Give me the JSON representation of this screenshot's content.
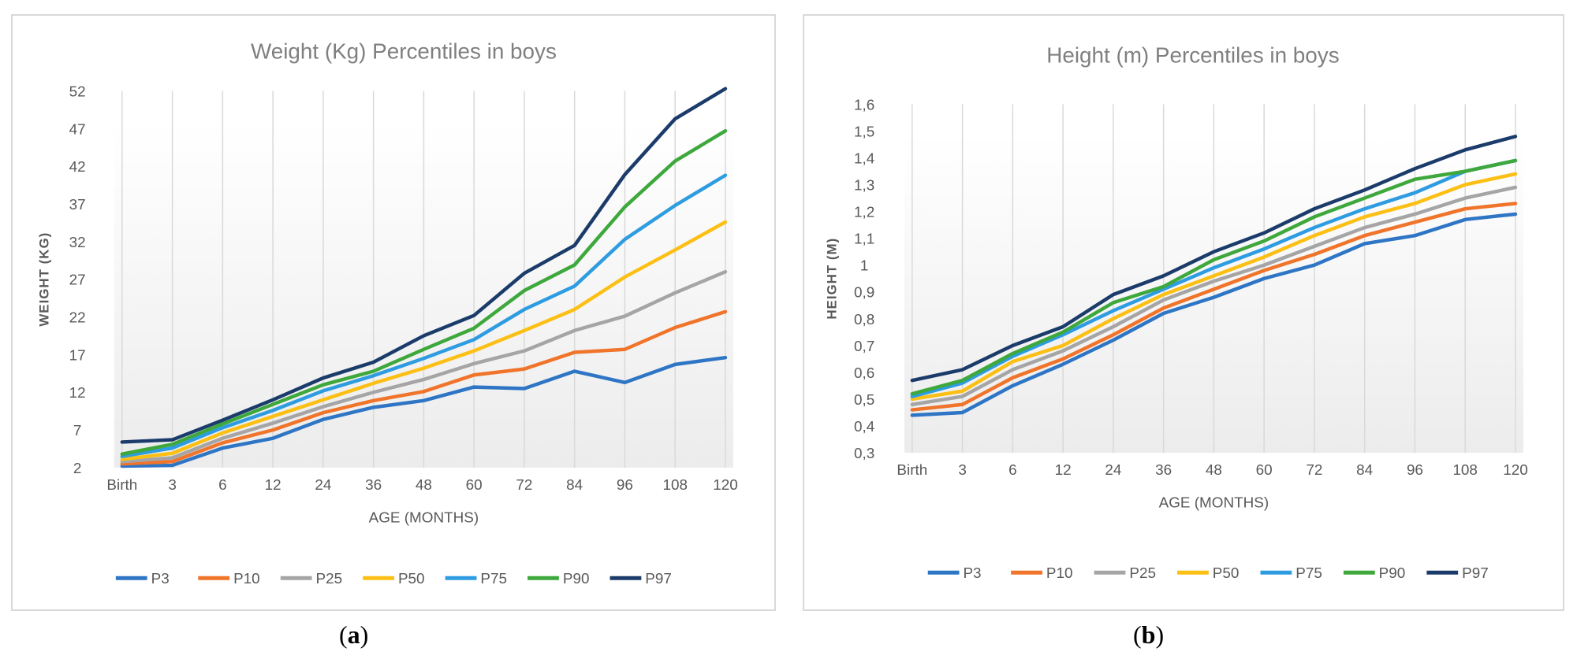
{
  "colors": {
    "P3": "#2e75c5",
    "P10": "#f0742a",
    "P25": "#a5a5a5",
    "P50": "#fcbf14",
    "P75": "#2e9ce0",
    "P90": "#3ea83c",
    "P97": "#1b3c6b",
    "grid": "#d9d9d9",
    "title": "#7f7f7f",
    "axis_text": "#595959"
  },
  "captions": {
    "a": {
      "open": "(",
      "letter": "a",
      "close": ")"
    },
    "b": {
      "open": "(",
      "letter": "b",
      "close": ")"
    }
  },
  "chart_data": [
    {
      "type": "line",
      "title": "Weight (Kg) Percentiles  in boys",
      "xlabel": "AGE (MONTHS)",
      "ylabel": "WEIGHT (KG)",
      "categories": [
        "Birth",
        "3",
        "6",
        "12",
        "24",
        "36",
        "48",
        "60",
        "72",
        "84",
        "96",
        "108",
        "120"
      ],
      "ylim": [
        2,
        52
      ],
      "yticks": [
        "2",
        "7",
        "12",
        "17",
        "22",
        "27",
        "32",
        "37",
        "42",
        "47",
        "52"
      ],
      "yticks_values": [
        2,
        7,
        12,
        17,
        22,
        27,
        32,
        37,
        42,
        47,
        52
      ],
      "grid": "vertical",
      "legend": "bottom",
      "series": [
        {
          "name": "P3",
          "values": [
            2.2,
            2.3,
            4.6,
            5.9,
            8.4,
            10.0,
            10.9,
            12.7,
            12.5,
            14.8,
            13.3,
            15.7,
            16.6
          ]
        },
        {
          "name": "P10",
          "values": [
            2.5,
            2.8,
            5.3,
            7.0,
            9.3,
            10.9,
            12.1,
            14.3,
            15.1,
            17.3,
            17.7,
            20.6,
            22.7
          ]
        },
        {
          "name": "P25",
          "values": [
            2.8,
            3.3,
            5.9,
            7.9,
            10.1,
            12.0,
            13.7,
            15.8,
            17.5,
            20.2,
            22.1,
            25.2,
            28.0
          ]
        },
        {
          "name": "P50",
          "values": [
            3.1,
            3.9,
            6.6,
            8.8,
            11.0,
            13.2,
            15.2,
            17.5,
            20.2,
            23.0,
            27.3,
            30.9,
            34.6
          ]
        },
        {
          "name": "P75",
          "values": [
            3.5,
            4.6,
            7.3,
            9.6,
            12.2,
            14.2,
            16.5,
            19.0,
            23.0,
            26.1,
            32.3,
            36.8,
            40.8
          ]
        },
        {
          "name": "P90",
          "values": [
            3.8,
            5.1,
            7.8,
            10.4,
            13.0,
            14.8,
            17.7,
            20.5,
            25.5,
            28.9,
            36.6,
            42.7,
            46.7
          ]
        },
        {
          "name": "P97",
          "values": [
            5.4,
            5.7,
            8.3,
            11.0,
            13.9,
            16.0,
            19.5,
            22.2,
            27.8,
            31.5,
            40.9,
            48.3,
            52.3
          ]
        }
      ]
    },
    {
      "type": "line",
      "title": "Height (m) Percentiles  in boys",
      "xlabel": "AGE (MONTHS)",
      "ylabel": "HEIGHT (M)",
      "categories": [
        "Birth",
        "3",
        "6",
        "12",
        "24",
        "36",
        "48",
        "60",
        "72",
        "84",
        "96",
        "108",
        "120"
      ],
      "ylim": [
        0.3,
        1.6
      ],
      "yticks": [
        "0,3",
        "0,4",
        "0,5",
        "0,6",
        "0,7",
        "0,8",
        "0,9",
        "1",
        "1,1",
        "1,2",
        "1,3",
        "1,4",
        "1,5",
        "1,6"
      ],
      "yticks_values": [
        0.3,
        0.4,
        0.5,
        0.6,
        0.7,
        0.8,
        0.9,
        1.0,
        1.1,
        1.2,
        1.3,
        1.4,
        1.5,
        1.6
      ],
      "grid": "vertical",
      "legend": "bottom",
      "series": [
        {
          "name": "P3",
          "values": [
            0.44,
            0.45,
            0.55,
            0.63,
            0.72,
            0.82,
            0.88,
            0.95,
            1.0,
            1.08,
            1.11,
            1.17,
            1.19
          ]
        },
        {
          "name": "P10",
          "values": [
            0.46,
            0.48,
            0.58,
            0.65,
            0.74,
            0.84,
            0.91,
            0.98,
            1.04,
            1.11,
            1.16,
            1.21,
            1.23
          ]
        },
        {
          "name": "P25",
          "values": [
            0.48,
            0.51,
            0.61,
            0.68,
            0.77,
            0.87,
            0.94,
            1.0,
            1.07,
            1.14,
            1.19,
            1.25,
            1.29
          ]
        },
        {
          "name": "P50",
          "values": [
            0.5,
            0.53,
            0.64,
            0.7,
            0.8,
            0.89,
            0.96,
            1.03,
            1.11,
            1.18,
            1.23,
            1.3,
            1.34
          ]
        },
        {
          "name": "P75",
          "values": [
            0.51,
            0.56,
            0.66,
            0.74,
            0.83,
            0.91,
            0.99,
            1.06,
            1.14,
            1.21,
            1.27,
            1.35,
            1.39
          ]
        },
        {
          "name": "P90",
          "values": [
            0.52,
            0.57,
            0.67,
            0.75,
            0.86,
            0.92,
            1.02,
            1.09,
            1.18,
            1.25,
            1.32,
            1.35,
            1.39
          ]
        },
        {
          "name": "P97",
          "values": [
            0.57,
            0.61,
            0.7,
            0.77,
            0.89,
            0.96,
            1.05,
            1.12,
            1.21,
            1.28,
            1.36,
            1.43,
            1.48
          ]
        }
      ]
    }
  ]
}
